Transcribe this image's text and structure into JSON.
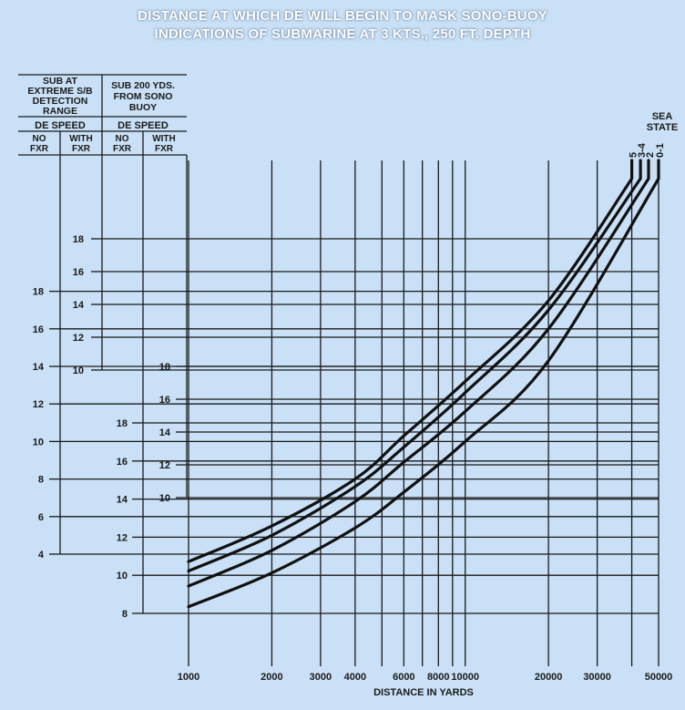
{
  "title_line1": "DISTANCE AT WHICH DE WILL BEGIN TO MASK SONO-BUOY",
  "title_line2": "INDICATIONS OF SUBMARINE AT 3 KTS., 250 FT. DEPTH",
  "header": {
    "group1": [
      "SUB AT",
      "EXTREME S/B",
      "DETECTION",
      "RANGE"
    ],
    "group2": [
      "SUB 200 YDS.",
      "FROM SONO",
      "BUOY"
    ],
    "de_speed": "DE  SPEED",
    "no_fxr": [
      "NO",
      "FXR"
    ],
    "with_fxr": [
      "WITH",
      "FXR"
    ]
  },
  "sea_state_label": [
    "SEA",
    "STATE"
  ],
  "chart_data": {
    "type": "line",
    "xlabel": "DISTANCE IN YARDS",
    "x_scale": "log",
    "xlim": [
      1000,
      50000
    ],
    "x_ticks": [
      1000,
      2000,
      3000,
      4000,
      6000,
      8000,
      10000,
      20000,
      30000,
      50000
    ],
    "x_tick_labels": [
      "1000",
      "2000",
      "3000",
      "4000",
      "6000",
      "8000",
      "10000",
      "20000",
      "30000",
      "50000"
    ],
    "x_gridlines": [
      1000,
      2000,
      3000,
      4000,
      5000,
      6000,
      7000,
      8000,
      9000,
      10000,
      20000,
      30000,
      40000,
      50000
    ],
    "y_scales": [
      {
        "group": "SUB AT EXTREME S/B DETECTION RANGE",
        "de_fitting": "NO FXR",
        "unit": "DE SPEED",
        "ticks": [
          4,
          6,
          8,
          10,
          12,
          14,
          16,
          18
        ],
        "tick_labels": [
          "4",
          "6",
          "8",
          "10",
          "12",
          "14",
          "16",
          "18"
        ]
      },
      {
        "group": "SUB AT EXTREME S/B DETECTION RANGE",
        "de_fitting": "WITH FXR",
        "unit": "DE SPEED",
        "ticks": [
          8,
          10,
          12,
          14,
          16,
          18
        ],
        "tick_labels": [
          "8",
          "10",
          "12",
          "14",
          "16",
          "18"
        ]
      },
      {
        "group": "SUB 200 YDS. FROM SONO BUOY",
        "de_fitting": "NO FXR",
        "unit": "DE SPEED",
        "ticks": [
          10,
          12,
          14,
          16,
          18
        ],
        "tick_labels": [
          "10",
          "12",
          "14",
          "16",
          "18"
        ]
      },
      {
        "group": "SUB 200 YDS. FROM SONO BUOY",
        "de_fitting": "WITH FXR",
        "unit": "DE SPEED",
        "ticks": [
          10,
          12,
          14,
          16,
          18
        ],
        "tick_labels": [
          "10",
          "12",
          "14",
          "16",
          "18"
        ]
      }
    ],
    "series_scale": "NO FXR, SUB AT EXTREME S/B DETECTION RANGE (DE SPEED)",
    "series": [
      {
        "name": "5",
        "x": [
          1000,
          2000,
          4000,
          6000,
          10000,
          20000,
          40000
        ],
        "values": [
          3.6,
          5.5,
          8.0,
          10.3,
          13.2,
          17.5,
          24.0
        ]
      },
      {
        "name": "3-4",
        "x": [
          1000,
          2000,
          4000,
          6000,
          10000,
          20000,
          43000
        ],
        "values": [
          3.1,
          5.0,
          7.6,
          9.7,
          12.6,
          17.0,
          24.0
        ]
      },
      {
        "name": "2",
        "x": [
          1000,
          2000,
          4000,
          6000,
          10000,
          20000,
          46000
        ],
        "values": [
          2.3,
          4.2,
          6.8,
          8.9,
          11.6,
          16.0,
          24.0
        ]
      },
      {
        "name": "0-1",
        "x": [
          1000,
          2000,
          4000,
          6000,
          10000,
          20000,
          50000
        ],
        "values": [
          1.2,
          3.0,
          5.4,
          7.3,
          10.0,
          14.3,
          24.0
        ]
      }
    ]
  }
}
